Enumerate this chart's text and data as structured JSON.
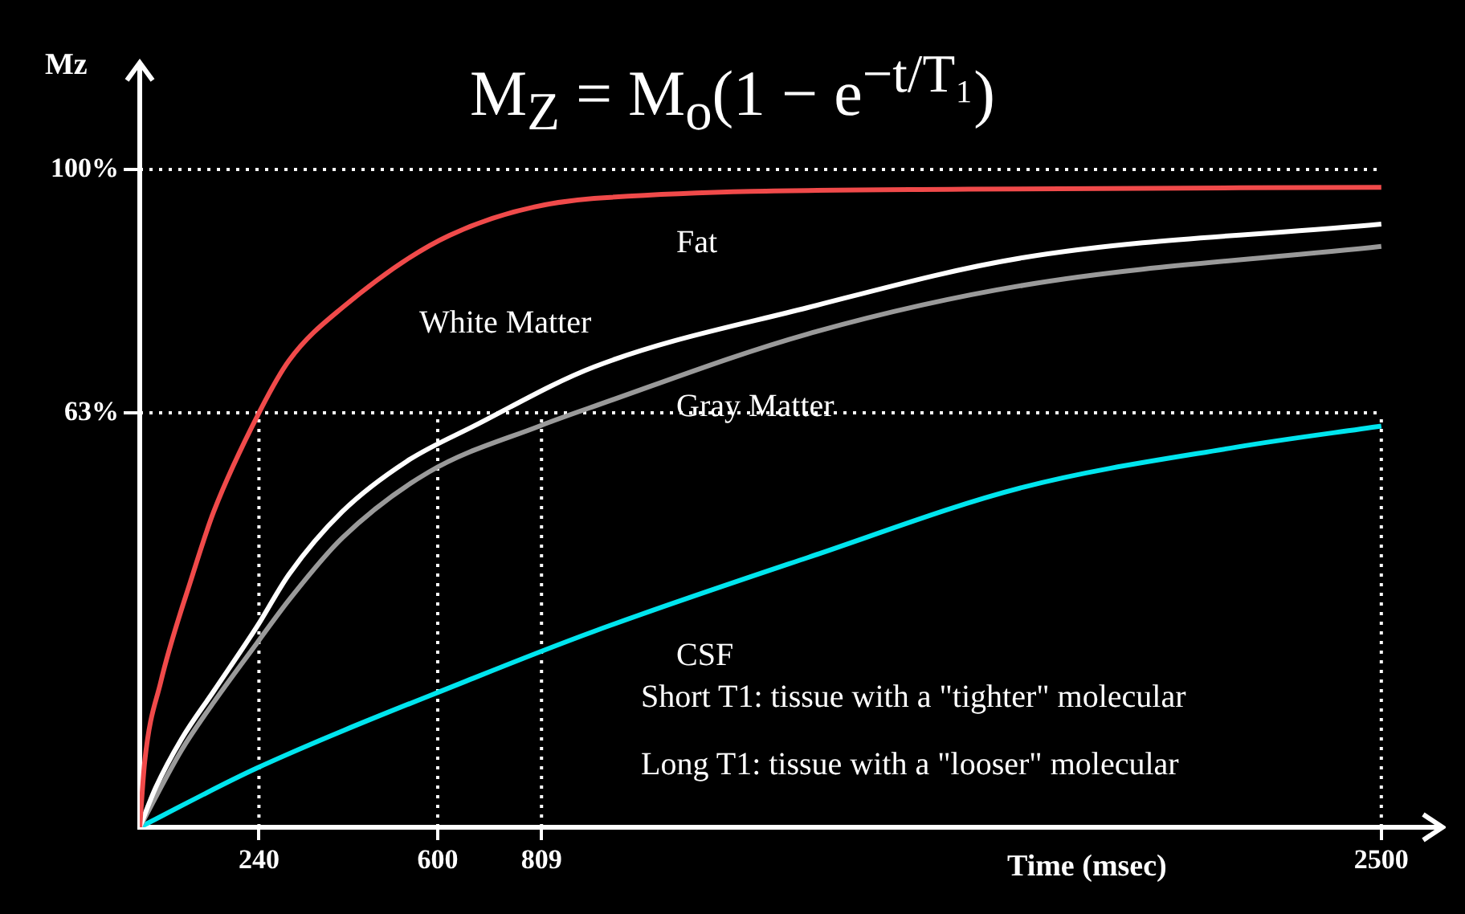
{
  "chart_data": {
    "type": "line",
    "title": "M$_{Z}$ = M$_{o}$(1 − e$^{−t/T₁}$)",
    "xlabel": "Time (msec)",
    "ylabel": "Mz",
    "xlim": [
      0,
      2620
    ],
    "ylim": [
      0,
      116
    ],
    "xticks": [
      240,
      600,
      809,
      2500
    ],
    "yticks": [
      {
        "value": 63,
        "label": "63%"
      },
      {
        "value": 100,
        "label": "100%"
      }
    ],
    "grid": false,
    "legend": false,
    "series": [
      {
        "name": "Fat",
        "color": "#f04a4a",
        "x": [
          0,
          10,
          42,
          107,
          149,
          240,
          301,
          408,
          624,
          915,
          1669,
          2500
        ],
        "values": [
          0,
          10,
          22,
          38.5,
          48,
          63,
          71,
          79,
          90,
          95.6,
          97,
          97.3
        ]
      },
      {
        "name": "White Matter",
        "color": "#ffffff",
        "x": [
          0,
          32,
          84,
          149,
          236,
          301,
          408,
          537,
          673,
          915,
          1345,
          1779,
          2500
        ],
        "values": [
          0,
          6,
          13.4,
          20.7,
          30.5,
          38.5,
          48,
          55.6,
          61,
          70,
          79,
          86.6,
          91.7
        ]
      },
      {
        "name": "Gray Matter",
        "color": "#9a9a9a",
        "x": [
          0,
          84,
          149,
          236,
          301,
          408,
          582,
          805,
          915,
          1345,
          1779,
          2500
        ],
        "values": [
          0,
          11.7,
          19,
          28,
          34.6,
          44,
          54,
          61,
          64,
          75,
          82.4,
          88.3
        ]
      },
      {
        "name": "CSF",
        "color": "#00e5ee",
        "x": [
          0,
          236,
          673,
          915,
          1345,
          1779,
          2209,
          2500
        ],
        "values": [
          0,
          9,
          22.7,
          29.8,
          41,
          51.7,
          57.8,
          61
        ]
      }
    ],
    "ref_lines": [
      {
        "axis": "y",
        "value": 100,
        "color": "#ffffff",
        "line_style": "dotted"
      },
      {
        "axis": "y",
        "value": 63,
        "color": "#ffffff",
        "line_style": "dotted"
      },
      {
        "axis": "x",
        "value": 240,
        "color": "#ffffff",
        "line_style": "dotted"
      },
      {
        "axis": "x",
        "value": 600,
        "color": "#ffffff",
        "line_style": "dotted"
      },
      {
        "axis": "x",
        "value": 809,
        "color": "#ffffff",
        "line_style": "dotted"
      },
      {
        "axis": "x",
        "value": 2500,
        "color": "#ffffff",
        "line_style": "dotted"
      }
    ],
    "annotations": [
      "Short T1: tissue with a \"tighter\" molecular",
      "Long T1: tissue with a \"looser\" molecular"
    ]
  }
}
